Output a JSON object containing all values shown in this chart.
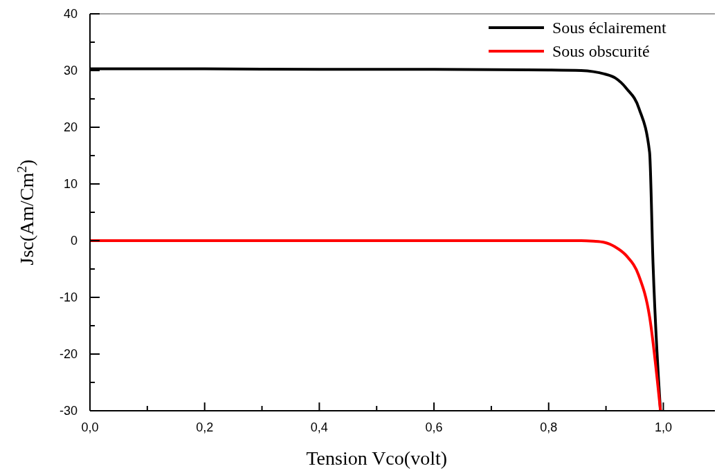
{
  "chart_data": {
    "type": "line",
    "xlabel": "Tension Vco(volt)",
    "ylabel": "Jsc(Am/Cm$^{2}$)",
    "xlim": [
      0,
      1.09
    ],
    "ylim": [
      -30,
      40
    ],
    "xticks": [
      {
        "value": 0,
        "label": "0,0"
      },
      {
        "value": 0.1,
        "label": null
      },
      {
        "value": 0.2,
        "label": "0,2"
      },
      {
        "value": 0.3,
        "label": null
      },
      {
        "value": 0.4,
        "label": "0,4"
      },
      {
        "value": 0.5,
        "label": null
      },
      {
        "value": 0.6,
        "label": "0,6"
      },
      {
        "value": 0.7,
        "label": null
      },
      {
        "value": 0.8,
        "label": "0,8"
      },
      {
        "value": 0.9,
        "label": null
      },
      {
        "value": 1.0,
        "label": "1,0"
      }
    ],
    "yticks": [
      {
        "value": -30,
        "label": "-30"
      },
      {
        "value": -25,
        "label": null
      },
      {
        "value": -20,
        "label": "-20"
      },
      {
        "value": -15,
        "label": null
      },
      {
        "value": -10,
        "label": "-10"
      },
      {
        "value": -5,
        "label": null
      },
      {
        "value": 0,
        "label": "0"
      },
      {
        "value": 5,
        "label": null
      },
      {
        "value": 10,
        "label": "10"
      },
      {
        "value": 15,
        "label": null
      },
      {
        "value": 20,
        "label": "20"
      },
      {
        "value": 25,
        "label": null
      },
      {
        "value": 30,
        "label": "30"
      },
      {
        "value": 35,
        "label": null
      },
      {
        "value": 40,
        "label": "40"
      }
    ],
    "grid": false,
    "legend": "top right",
    "line_style": "solid",
    "series": [
      {
        "name": "Sous éclairement",
        "color": "#000000",
        "x": [
          0,
          0.2,
          0.4,
          0.6,
          0.8,
          0.857,
          0.878,
          0.897,
          0.916,
          0.936,
          0.958,
          0.976,
          0.982,
          0.995
        ],
        "values": [
          30.3,
          30.3,
          30.2,
          30.2,
          30.1,
          30.0,
          29.8,
          29.4,
          28.7,
          26.8,
          23.2,
          15.6,
          -3.9,
          -30
        ]
      },
      {
        "name": "Sous obscurité",
        "color": "#ff0000",
        "x": [
          0,
          0.2,
          0.4,
          0.6,
          0.8,
          0.857,
          0.878,
          0.897,
          0.916,
          0.936,
          0.957,
          0.976,
          0.995
        ],
        "values": [
          0,
          0,
          0,
          0,
          0,
          0,
          -0.1,
          -0.3,
          -1.1,
          -2.7,
          -6.1,
          -13.4,
          -30
        ]
      }
    ]
  }
}
